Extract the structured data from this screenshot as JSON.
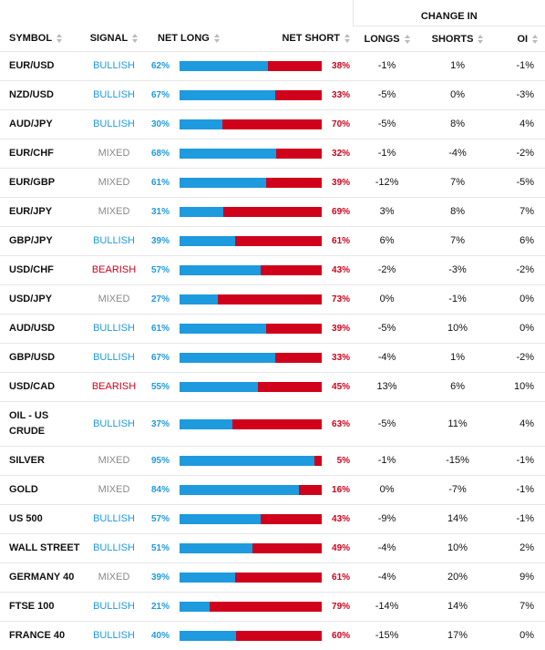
{
  "header": {
    "symbol": "SYMBOL",
    "signal": "SIGNAL",
    "net_long": "NET LONG",
    "net_short": "NET SHORT",
    "change_in": "CHANGE IN",
    "longs": "LONGS",
    "shorts": "SHORTS",
    "oi": "OI"
  },
  "colors": {
    "long": "#1e9ade",
    "short": "#d0021b",
    "signals": {
      "BULLISH": "#1e9ade",
      "MIXED": "#8a8a8a",
      "BEARISH": "#d0021b"
    }
  },
  "rows": [
    {
      "symbol": "EUR/USD",
      "signal": "BULLISH",
      "net_long": {
        "value": 62,
        "label": "62%"
      },
      "net_short": {
        "value": 38,
        "label": "38%"
      },
      "longs": "-1%",
      "shorts": "1%",
      "oi": "-1%"
    },
    {
      "symbol": "NZD/USD",
      "signal": "BULLISH",
      "net_long": {
        "value": 67,
        "label": "67%"
      },
      "net_short": {
        "value": 33,
        "label": "33%"
      },
      "longs": "-5%",
      "shorts": "0%",
      "oi": "-3%"
    },
    {
      "symbol": "AUD/JPY",
      "signal": "BULLISH",
      "net_long": {
        "value": 30,
        "label": "30%"
      },
      "net_short": {
        "value": 70,
        "label": "70%"
      },
      "longs": "-5%",
      "shorts": "8%",
      "oi": "4%"
    },
    {
      "symbol": "EUR/CHF",
      "signal": "MIXED",
      "net_long": {
        "value": 68,
        "label": "68%"
      },
      "net_short": {
        "value": 32,
        "label": "32%"
      },
      "longs": "-1%",
      "shorts": "-4%",
      "oi": "-2%"
    },
    {
      "symbol": "EUR/GBP",
      "signal": "MIXED",
      "net_long": {
        "value": 61,
        "label": "61%"
      },
      "net_short": {
        "value": 39,
        "label": "39%"
      },
      "longs": "-12%",
      "shorts": "7%",
      "oi": "-5%"
    },
    {
      "symbol": "EUR/JPY",
      "signal": "MIXED",
      "net_long": {
        "value": 31,
        "label": "31%"
      },
      "net_short": {
        "value": 69,
        "label": "69%"
      },
      "longs": "3%",
      "shorts": "8%",
      "oi": "7%"
    },
    {
      "symbol": "GBP/JPY",
      "signal": "BULLISH",
      "net_long": {
        "value": 39,
        "label": "39%"
      },
      "net_short": {
        "value": 61,
        "label": "61%"
      },
      "longs": "6%",
      "shorts": "7%",
      "oi": "6%"
    },
    {
      "symbol": "USD/CHF",
      "signal": "BEARISH",
      "net_long": {
        "value": 57,
        "label": "57%"
      },
      "net_short": {
        "value": 43,
        "label": "43%"
      },
      "longs": "-2%",
      "shorts": "-3%",
      "oi": "-2%"
    },
    {
      "symbol": "USD/JPY",
      "signal": "MIXED",
      "net_long": {
        "value": 27,
        "label": "27%"
      },
      "net_short": {
        "value": 73,
        "label": "73%"
      },
      "longs": "0%",
      "shorts": "-1%",
      "oi": "0%"
    },
    {
      "symbol": "AUD/USD",
      "signal": "BULLISH",
      "net_long": {
        "value": 61,
        "label": "61%"
      },
      "net_short": {
        "value": 39,
        "label": "39%"
      },
      "longs": "-5%",
      "shorts": "10%",
      "oi": "0%"
    },
    {
      "symbol": "GBP/USD",
      "signal": "BULLISH",
      "net_long": {
        "value": 67,
        "label": "67%"
      },
      "net_short": {
        "value": 33,
        "label": "33%"
      },
      "longs": "-4%",
      "shorts": "1%",
      "oi": "-2%"
    },
    {
      "symbol": "USD/CAD",
      "signal": "BEARISH",
      "net_long": {
        "value": 55,
        "label": "55%"
      },
      "net_short": {
        "value": 45,
        "label": "45%"
      },
      "longs": "13%",
      "shorts": "6%",
      "oi": "10%"
    },
    {
      "symbol": "OIL - US CRUDE",
      "signal": "BULLISH",
      "net_long": {
        "value": 37,
        "label": "37%"
      },
      "net_short": {
        "value": 63,
        "label": "63%"
      },
      "longs": "-5%",
      "shorts": "11%",
      "oi": "4%"
    },
    {
      "symbol": "SILVER",
      "signal": "MIXED",
      "net_long": {
        "value": 95,
        "label": "95%"
      },
      "net_short": {
        "value": 5,
        "label": "5%"
      },
      "longs": "-1%",
      "shorts": "-15%",
      "oi": "-1%"
    },
    {
      "symbol": "GOLD",
      "signal": "MIXED",
      "net_long": {
        "value": 84,
        "label": "84%"
      },
      "net_short": {
        "value": 16,
        "label": "16%"
      },
      "longs": "0%",
      "shorts": "-7%",
      "oi": "-1%"
    },
    {
      "symbol": "US 500",
      "signal": "BULLISH",
      "net_long": {
        "value": 57,
        "label": "57%"
      },
      "net_short": {
        "value": 43,
        "label": "43%"
      },
      "longs": "-9%",
      "shorts": "14%",
      "oi": "-1%"
    },
    {
      "symbol": "WALL STREET",
      "signal": "BULLISH",
      "net_long": {
        "value": 51,
        "label": "51%"
      },
      "net_short": {
        "value": 49,
        "label": "49%"
      },
      "longs": "-4%",
      "shorts": "10%",
      "oi": "2%"
    },
    {
      "symbol": "GERMANY 40",
      "signal": "MIXED",
      "net_long": {
        "value": 39,
        "label": "39%"
      },
      "net_short": {
        "value": 61,
        "label": "61%"
      },
      "longs": "-4%",
      "shorts": "20%",
      "oi": "9%"
    },
    {
      "symbol": "FTSE 100",
      "signal": "BULLISH",
      "net_long": {
        "value": 21,
        "label": "21%"
      },
      "net_short": {
        "value": 79,
        "label": "79%"
      },
      "longs": "-14%",
      "shorts": "14%",
      "oi": "7%"
    },
    {
      "symbol": "FRANCE 40",
      "signal": "BULLISH",
      "net_long": {
        "value": 40,
        "label": "40%"
      },
      "net_short": {
        "value": 60,
        "label": "60%"
      },
      "longs": "-15%",
      "shorts": "17%",
      "oi": "0%"
    }
  ]
}
